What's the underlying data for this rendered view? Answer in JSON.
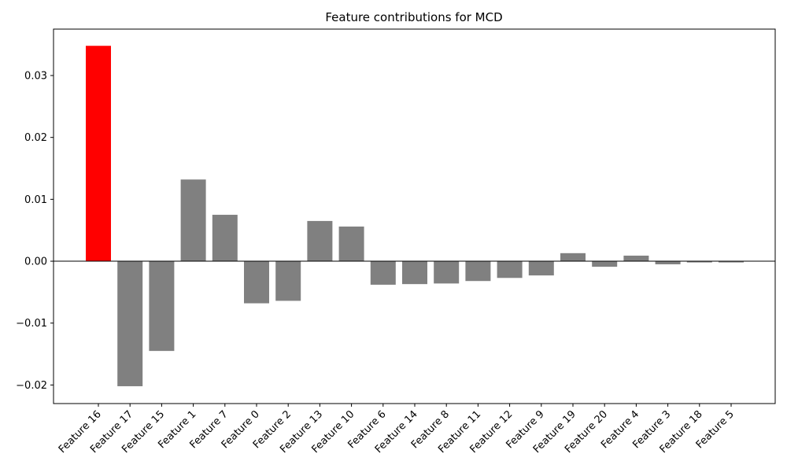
{
  "chart_data": {
    "type": "bar",
    "title": "Feature contributions for MCD",
    "xlabel": "",
    "ylabel": "",
    "categories": [
      "Feature 16",
      "Feature 17",
      "Feature 15",
      "Feature 1",
      "Feature 7",
      "Feature 0",
      "Feature 2",
      "Feature 13",
      "Feature 10",
      "Feature 6",
      "Feature 14",
      "Feature 8",
      "Feature 11",
      "Feature 12",
      "Feature 9",
      "Feature 19",
      "Feature 20",
      "Feature 4",
      "Feature 3",
      "Feature 18",
      "Feature 5"
    ],
    "values": [
      0.0348,
      -0.0202,
      -0.0145,
      0.0132,
      0.0075,
      -0.0068,
      -0.0064,
      0.0065,
      0.0056,
      -0.0038,
      -0.0037,
      -0.0036,
      -0.0032,
      -0.0027,
      -0.0023,
      0.0013,
      -0.0009,
      0.0009,
      -0.0005,
      -0.0002,
      -0.0002
    ],
    "highlight_index": 0,
    "highlight_color": "#ff0000",
    "bar_color": "#808080",
    "ylim": [
      -0.023,
      0.0375
    ],
    "yticks": [
      -0.02,
      -0.01,
      0.0,
      0.01,
      0.02,
      0.03
    ],
    "ytick_labels": [
      "−0.02",
      "−0.01",
      "0.00",
      "0.01",
      "0.02",
      "0.03"
    ],
    "zero_line": true,
    "grid": false
  }
}
